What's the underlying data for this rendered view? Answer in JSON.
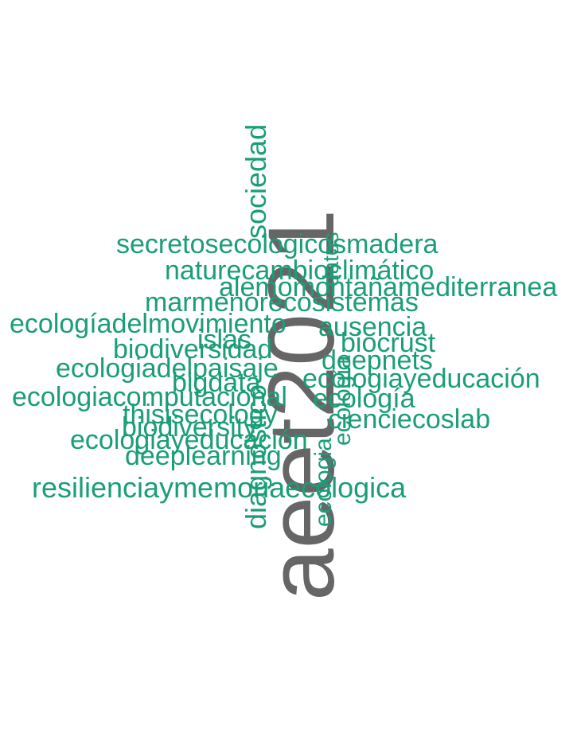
{
  "colors": {
    "primary_word": "#666666",
    "words": "#1b9e77",
    "background": "#ffffff"
  },
  "words": {
    "w0": "aeet2021",
    "w1": "secretosecologicosmadera",
    "w2": "naturecambioclimático",
    "w3": "alemomontañamediterranea",
    "w4": "marmenorecosistemas",
    "w5": "ecologíadelmovimiento",
    "w6": "ausencia",
    "w7": "islas",
    "w8": "biocrust",
    "w9": "biodiversidad",
    "w10": "deepnets",
    "w11": "ecologiadelpaisaje",
    "w12": "ecologiayeducación",
    "w13": "bigdata",
    "w14": "ecologiacomputacional",
    "w15": "ecología",
    "w16": "thisisecology",
    "w17": "cienciecoslab",
    "w18": "biodiversity",
    "w19": "ecologiayeducación",
    "w20": "deeplearning",
    "w21": "resilienciaymemoriaecologica",
    "w22": "sociedad",
    "w23": "diagnostico",
    "w24": "ecologia",
    "w25": "ecología",
    "w26": "datos"
  }
}
